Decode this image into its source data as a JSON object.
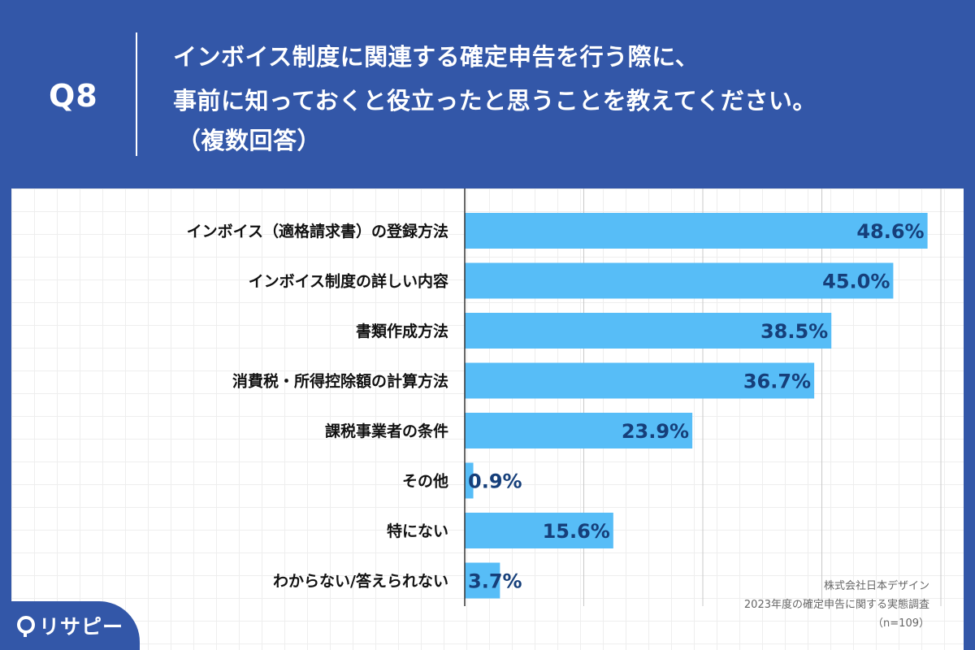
{
  "header": {
    "question_number": "Q8",
    "question_lines": [
      "インボイス制度に関連する確定申告を行う際に、",
      "事前に知っておくと役立ったと思うことを教えてください。",
      "（複数回答）"
    ]
  },
  "chart_data": {
    "type": "bar",
    "orientation": "horizontal",
    "title": "インボイス制度に関連する確定申告を行う際に、事前に知っておくと役立ったと思うことを教えてください。（複数回答）",
    "categories": [
      "インボイス（適格請求書）の登録方法",
      "インボイス制度の詳しい内容",
      "書類作成方法",
      "消費税・所得控除額の計算方法",
      "課税事業者の条件",
      "その他",
      "特にない",
      "わからない/答えられない"
    ],
    "values": [
      48.6,
      45.0,
      38.5,
      36.7,
      23.9,
      0.9,
      15.6,
      3.7
    ],
    "value_labels": [
      "48.6%",
      "45.0%",
      "38.5%",
      "36.7%",
      "23.9%",
      "0.9%",
      "15.6%",
      "3.7%"
    ],
    "unit": "%",
    "xlim": [
      0,
      50
    ],
    "grid_step": 12.5,
    "colors": {
      "bar": "#57bdf7",
      "value_text": "#163f7a",
      "background": "#3357a8"
    }
  },
  "source": {
    "company": "株式会社日本デザイン",
    "survey": "2023年度の確定申告に関する実態調査",
    "sample": "（n=109）"
  },
  "logo": {
    "text": "リサピー",
    "icon": "pin-icon"
  }
}
